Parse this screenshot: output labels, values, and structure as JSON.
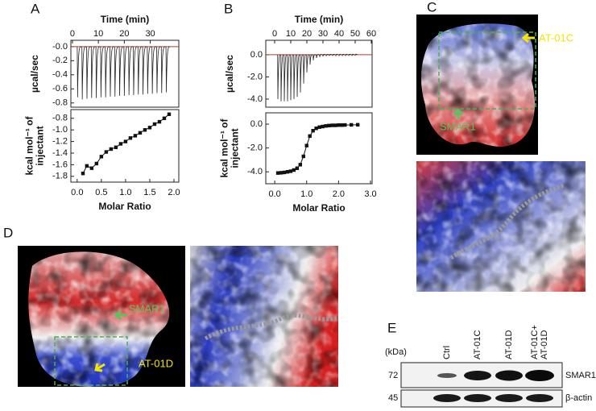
{
  "chart_data": [
    {
      "type": "thermogram",
      "xaxis": "top",
      "xlabel": "Time (min)",
      "ylabel": [
        "µcal/sec"
      ],
      "xlim": [
        -0.6,
        41
      ],
      "xticks": [
        0,
        10,
        20,
        30
      ],
      "ylim": [
        -0.86,
        0.09
      ],
      "yticks": [
        {
          "value": 0,
          "label": "-0.0"
        },
        -0.2,
        -0.4,
        -0.6,
        -0.8
      ],
      "x": [
        2,
        3.8,
        5.6,
        7.4,
        9.2,
        11,
        12.8,
        14.6,
        16.4,
        18.2,
        20,
        21.8,
        23.6,
        25.4,
        27.2,
        29,
        30.8,
        32.6,
        34.4,
        36.2
      ],
      "values": [
        -0.72,
        -0.75,
        -0.74,
        -0.73,
        -0.73,
        -0.72,
        -0.72,
        -0.71,
        -0.71,
        -0.7,
        -0.7,
        -0.69,
        -0.69,
        -0.68,
        -0.68,
        -0.67,
        -0.67,
        -0.66,
        -0.66,
        -0.65
      ],
      "color": "#222222",
      "baseline": 0,
      "baseline_color": "#c0392b"
    },
    {
      "type": "scatter",
      "xaxis": "bottom",
      "xlabel": "Molar Ratio",
      "ylabel": [
        "kcal mol⁻¹ of",
        "injectant"
      ],
      "xlim": [
        -0.13,
        2.1
      ],
      "xticks": [
        {
          "value": 0,
          "label": "0.0"
        },
        0.5,
        {
          "value": 1,
          "label": "1.0"
        },
        1.5,
        {
          "value": 2,
          "label": "2.0"
        }
      ],
      "ylim": [
        -1.9,
        -0.65
      ],
      "yticks": [
        -0.8,
        {
          "value": -1,
          "label": "-1.0"
        },
        -1.2,
        -1.4,
        -1.6,
        -1.8
      ],
      "x": [
        0.12,
        0.2,
        0.3,
        0.4,
        0.5,
        0.6,
        0.7,
        0.8,
        0.9,
        1.0,
        1.1,
        1.2,
        1.3,
        1.4,
        1.5,
        1.6,
        1.7,
        1.8,
        1.9
      ],
      "values": [
        -1.75,
        -1.62,
        -1.66,
        -1.58,
        -1.46,
        -1.38,
        -1.33,
        -1.3,
        -1.24,
        -1.2,
        -1.14,
        -1.1,
        -1.05,
        -1.0,
        -0.96,
        -0.9,
        -0.86,
        -0.8,
        -0.73
      ],
      "color": "#111111",
      "line": true
    },
    {
      "type": "thermogram",
      "xaxis": "top",
      "xlabel": "Time (min)",
      "ylabel": [
        "µcal/sec"
      ],
      "xlim": [
        -5.5,
        60.5
      ],
      "xticks": [
        0,
        10,
        20,
        30,
        40,
        50,
        60
      ],
      "ylim": [
        -4.73,
        1.3
      ],
      "yticks": [
        {
          "value": 0,
          "label": "0.0"
        },
        {
          "value": -2,
          "label": "-2.0"
        },
        {
          "value": -4,
          "label": "-4.0"
        }
      ],
      "x": [
        2,
        4,
        6,
        8,
        10,
        12,
        14,
        16,
        18,
        20,
        22,
        24,
        26,
        28,
        30,
        32,
        34,
        36,
        38,
        40,
        42,
        44,
        46,
        48,
        50
      ],
      "values": [
        -4.0,
        -4.2,
        -4.2,
        -4.2,
        -4.1,
        -4.0,
        -3.8,
        -3.4,
        -2.6,
        -1.6,
        -0.9,
        -0.5,
        -0.3,
        -0.2,
        -0.15,
        -0.12,
        -0.1,
        -0.1,
        -0.08,
        -0.08,
        -0.07,
        -0.07,
        -0.06,
        -0.06,
        -0.05
      ],
      "color": "#222222",
      "baseline": 0,
      "baseline_color": "#c0392b"
    },
    {
      "type": "scatter",
      "xaxis": "bottom",
      "xlabel": "Molar Ratio",
      "ylabel": [
        "kcal mol⁻¹ of",
        "injectant"
      ],
      "xlim": [
        -0.28,
        3.05
      ],
      "xticks": [
        {
          "value": 0,
          "label": "0.0"
        },
        {
          "value": 1,
          "label": "1.0"
        },
        {
          "value": 2,
          "label": "2.0"
        },
        {
          "value": 3,
          "label": "3.0"
        }
      ],
      "ylim": [
        -5.0,
        0.95
      ],
      "yticks": [
        {
          "value": 0,
          "label": "0.0"
        },
        {
          "value": -2,
          "label": "-2.0"
        },
        {
          "value": -4,
          "label": "-4.0"
        }
      ],
      "x": [
        0.1,
        0.2,
        0.3,
        0.4,
        0.5,
        0.6,
        0.7,
        0.8,
        0.9,
        1.0,
        1.1,
        1.2,
        1.3,
        1.4,
        1.5,
        1.6,
        1.7,
        1.8,
        1.9,
        2.0,
        2.1,
        2.2,
        2.4,
        2.6
      ],
      "values": [
        -4.1,
        -4.08,
        -4.05,
        -4.0,
        -3.95,
        -3.85,
        -3.7,
        -3.4,
        -2.7,
        -1.8,
        -1.0,
        -0.55,
        -0.35,
        -0.25,
        -0.2,
        -0.15,
        -0.12,
        -0.1,
        -0.1,
        -0.08,
        -0.08,
        -0.07,
        -0.06,
        -0.05
      ],
      "color": "#111111",
      "line": true
    }
  ],
  "figure": {
    "panels": [
      "A",
      "B",
      "C",
      "D",
      "E"
    ],
    "panel_c": {
      "labels": [
        "AT-01C",
        "SMAR1"
      ]
    },
    "panel_d": {
      "labels": [
        "SMAR1",
        "AT-01D"
      ]
    },
    "panel_e": {
      "unit": "(kDa)",
      "lanes": [
        [
          "Ctrl"
        ],
        [
          "AT-01C"
        ],
        [
          "AT-01D"
        ],
        [
          "AT-01C+",
          "AT-01D"
        ]
      ],
      "markers": [
        72,
        45
      ],
      "proteins": [
        "SMAR1",
        "β-actin"
      ]
    }
  }
}
